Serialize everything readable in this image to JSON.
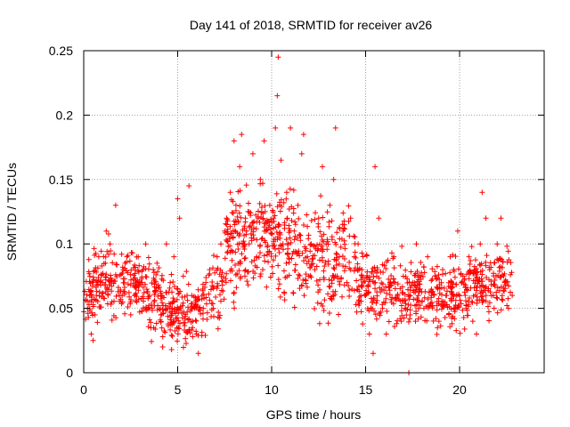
{
  "chart_data": {
    "type": "scatter",
    "title": "Day 141 of 2018, SRMTID for receiver av26",
    "xlabel": "GPS time / hours",
    "ylabel": "SRMTID / TECUs",
    "xlim": [
      0,
      24.5
    ],
    "ylim": [
      0,
      0.25
    ],
    "grid": true,
    "legend": "none",
    "marker": "+",
    "series_color": "#ff0000",
    "xticks": [
      0,
      5,
      10,
      15,
      20
    ],
    "xtick_labels": [
      "0",
      "5",
      "10",
      "15",
      "20"
    ],
    "yticks": [
      0,
      0.05,
      0.1,
      0.15,
      0.2,
      0.25
    ],
    "ytick_labels": [
      "0",
      "0.05",
      "0.1",
      "0.15",
      "0.2",
      "0.25"
    ],
    "x_range": [
      0,
      22.8
    ],
    "series": [
      {
        "name": "SRMTID",
        "points": [
          [
            0.2,
            0.05
          ],
          [
            0.3,
            0.06
          ],
          [
            0.4,
            0.03
          ],
          [
            0.5,
            0.025
          ],
          [
            0.6,
            0.045
          ],
          [
            0.8,
            0.09
          ],
          [
            1.0,
            0.07
          ],
          [
            1.2,
            0.11
          ],
          [
            1.4,
            0.1
          ],
          [
            1.5,
            0.055
          ],
          [
            1.7,
            0.13
          ],
          [
            1.9,
            0.06
          ],
          [
            2.1,
            0.08
          ],
          [
            2.3,
            0.09
          ],
          [
            2.5,
            0.045
          ],
          [
            2.7,
            0.06
          ],
          [
            2.9,
            0.09
          ],
          [
            3.1,
            0.07
          ],
          [
            3.3,
            0.1
          ],
          [
            3.5,
            0.06
          ],
          [
            3.7,
            0.08
          ],
          [
            3.9,
            0.085
          ],
          [
            4.1,
            0.06
          ],
          [
            4.2,
            0.02
          ],
          [
            4.4,
            0.1
          ],
          [
            4.6,
            0.07
          ],
          [
            4.8,
            0.09
          ],
          [
            5.0,
            0.135
          ],
          [
            5.1,
            0.12
          ],
          [
            5.3,
            0.075
          ],
          [
            5.5,
            0.06
          ],
          [
            5.6,
            0.145
          ],
          [
            5.8,
            0.04
          ],
          [
            6.0,
            0.03
          ],
          [
            6.1,
            0.015
          ],
          [
            6.3,
            0.06
          ],
          [
            6.5,
            0.07
          ],
          [
            6.7,
            0.08
          ],
          [
            6.9,
            0.05
          ],
          [
            7.1,
            0.09
          ],
          [
            7.3,
            0.1
          ],
          [
            7.5,
            0.11
          ],
          [
            7.6,
            0.12
          ],
          [
            7.8,
            0.14
          ],
          [
            8.0,
            0.18
          ],
          [
            8.1,
            0.13
          ],
          [
            8.3,
            0.16
          ],
          [
            8.4,
            0.185
          ],
          [
            8.6,
            0.12
          ],
          [
            8.8,
            0.1
          ],
          [
            9.0,
            0.17
          ],
          [
            9.2,
            0.09
          ],
          [
            9.4,
            0.15
          ],
          [
            9.6,
            0.18
          ],
          [
            9.7,
            0.11
          ],
          [
            9.9,
            0.13
          ],
          [
            10.1,
            0.12
          ],
          [
            10.2,
            0.19
          ],
          [
            10.3,
            0.215
          ],
          [
            10.35,
            0.245
          ],
          [
            10.5,
            0.165
          ],
          [
            10.6,
            0.1
          ],
          [
            10.8,
            0.14
          ],
          [
            11.0,
            0.19
          ],
          [
            11.2,
            0.11
          ],
          [
            11.4,
            0.13
          ],
          [
            11.6,
            0.17
          ],
          [
            11.7,
            0.185
          ],
          [
            11.9,
            0.09
          ],
          [
            12.1,
            0.1
          ],
          [
            12.3,
            0.08
          ],
          [
            12.5,
            0.12
          ],
          [
            12.7,
            0.16
          ],
          [
            12.9,
            0.1
          ],
          [
            13.1,
            0.13
          ],
          [
            13.3,
            0.15
          ],
          [
            13.4,
            0.19
          ],
          [
            13.6,
            0.09
          ],
          [
            13.8,
            0.11
          ],
          [
            14.0,
            0.07
          ],
          [
            14.2,
            0.12
          ],
          [
            14.4,
            0.09
          ],
          [
            14.6,
            0.1
          ],
          [
            14.8,
            0.08
          ],
          [
            15.0,
            0.06
          ],
          [
            15.2,
            0.03
          ],
          [
            15.4,
            0.015
          ],
          [
            15.5,
            0.16
          ],
          [
            15.7,
            0.12
          ],
          [
            15.9,
            0.05
          ],
          [
            16.1,
            0.03
          ],
          [
            16.3,
            0.07
          ],
          [
            16.5,
            0.09
          ],
          [
            16.7,
            0.06
          ],
          [
            16.9,
            0.04
          ],
          [
            17.1,
            0.05
          ],
          [
            17.3,
            0.0
          ],
          [
            17.5,
            0.07
          ],
          [
            17.7,
            0.1
          ],
          [
            17.9,
            0.065
          ],
          [
            18.1,
            0.05
          ],
          [
            18.3,
            0.09
          ],
          [
            18.5,
            0.06
          ],
          [
            18.7,
            0.075
          ],
          [
            18.9,
            0.04
          ],
          [
            19.1,
            0.08
          ],
          [
            19.3,
            0.06
          ],
          [
            19.5,
            0.09
          ],
          [
            19.7,
            0.05
          ],
          [
            19.9,
            0.11
          ],
          [
            20.1,
            0.07
          ],
          [
            20.3,
            0.06
          ],
          [
            20.5,
            0.09
          ],
          [
            20.7,
            0.04
          ],
          [
            20.9,
            0.03
          ],
          [
            21.1,
            0.1
          ],
          [
            21.2,
            0.14
          ],
          [
            21.4,
            0.12
          ],
          [
            21.6,
            0.08
          ],
          [
            21.8,
            0.06
          ],
          [
            22.0,
            0.1
          ],
          [
            22.2,
            0.12
          ],
          [
            22.4,
            0.07
          ],
          [
            22.6,
            0.05
          ],
          [
            22.8,
            0.06
          ]
        ]
      }
    ]
  }
}
